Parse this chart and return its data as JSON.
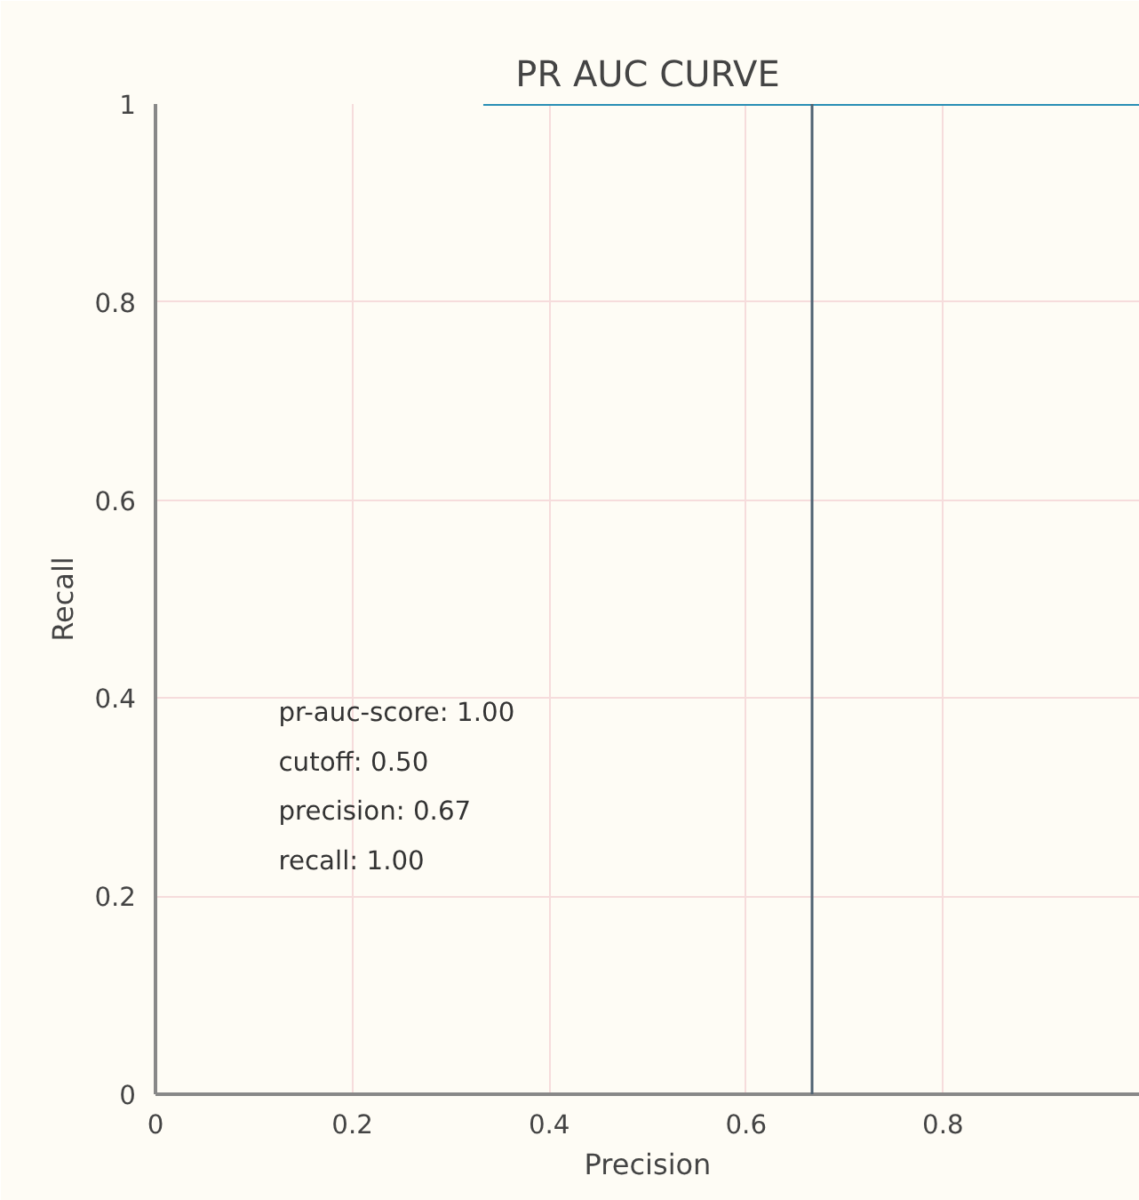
{
  "chart_data": {
    "type": "line",
    "title": "PR AUC CURVE",
    "xlabel": "Precision",
    "ylabel": "Recall",
    "x": [
      0.333,
      1
    ],
    "series": [
      {
        "color": "#2a8fb5",
        "values": [
          1,
          1
        ]
      }
    ],
    "xlim": [
      0,
      1
    ],
    "ylim": [
      0,
      1
    ],
    "xticks": [
      0,
      0.2,
      0.4,
      0.6,
      0.8
    ],
    "yticks": [
      0,
      0.2,
      0.4,
      0.6,
      0.8,
      1
    ],
    "ref_lines": [
      {
        "axis": "x",
        "value": 0.667,
        "color": "#4f6272"
      }
    ],
    "annotations": [
      "pr-auc-score: 1.00",
      " cutoff: 0.50",
      " precision: 0.67",
      " recall: 1.00"
    ],
    "grid": true
  }
}
